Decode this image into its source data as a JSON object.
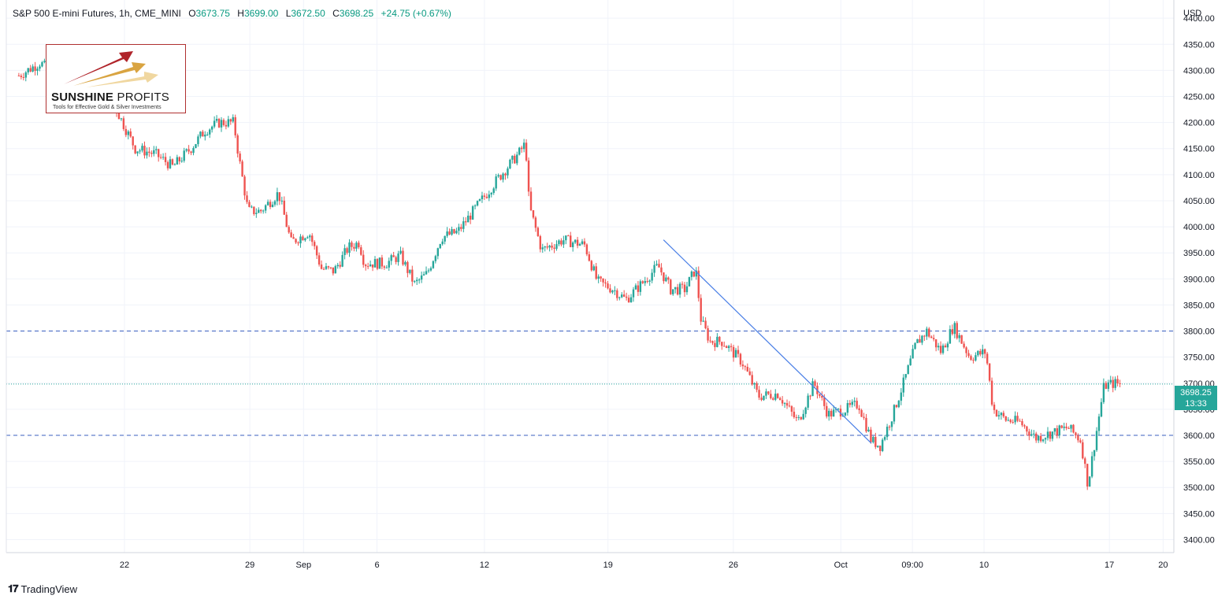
{
  "header": {
    "symbol": "S&P 500 E-mini Futures, 1h, CME_MINI",
    "o_label": "O",
    "o_value": "3673.75",
    "h_label": "H",
    "h_value": "3699.00",
    "l_label": "L",
    "l_value": "3672.50",
    "c_label": "C",
    "c_value": "3698.25",
    "change": "+24.75 (+0.67%)"
  },
  "logo": {
    "name_bold": "SUNSHINE",
    "name_thin": "PROFITS",
    "tagline": "Tools for Effective Gold & Silver Investments"
  },
  "footer": {
    "brand": "TradingView",
    "brand_icon": "tradingview-logo-icon"
  },
  "price_tag": {
    "price": "3698.25",
    "countdown": "13:33",
    "color": "#26a69a"
  },
  "chart_data": {
    "type": "candlestick",
    "currency": "USD",
    "ylim": [
      3375,
      4435
    ],
    "y_ticks": [
      3400,
      3450,
      3500,
      3550,
      3600,
      3650,
      3700,
      3750,
      3800,
      3850,
      3900,
      3950,
      4000,
      4050,
      4100,
      4150,
      4200,
      4250,
      4300,
      4350,
      4400
    ],
    "y_tick_labels": [
      "3400.00",
      "3450.00",
      "3500.00",
      "3550.00",
      "3600.00",
      "3650.00",
      "3700.00",
      "3750.00",
      "3800.00",
      "3850.00",
      "3900.00",
      "3950.00",
      "4000.00",
      "4050.00",
      "4100.00",
      "4150.00",
      "4200.00",
      "4250.00",
      "4300.00",
      "4350.00",
      "4400.00"
    ],
    "x_ticks": [
      {
        "label": "22",
        "t": 5.9
      },
      {
        "label": "29",
        "t": 12.9
      },
      {
        "label": "Sep",
        "t": 15.9
      },
      {
        "label": "6",
        "t": 20.0
      },
      {
        "label": "12",
        "t": 26.0
      },
      {
        "label": "19",
        "t": 32.9
      },
      {
        "label": "26",
        "t": 39.9
      },
      {
        "label": "Oct",
        "t": 45.9
      },
      {
        "label": "09:00",
        "t": 49.9
      },
      {
        "label": "10",
        "t": 53.9
      },
      {
        "label": "17",
        "t": 60.9
      },
      {
        "label": "20",
        "t": 63.9
      }
    ],
    "path": [
      [
        0,
        4290
      ],
      [
        1.2,
        4315
      ],
      [
        2.3,
        4280
      ],
      [
        3.5,
        4270
      ],
      [
        4.4,
        4258
      ],
      [
        5.3,
        4235
      ],
      [
        6.5,
        4150
      ],
      [
        7.6,
        4140
      ],
      [
        8.6,
        4115
      ],
      [
        9.6,
        4150
      ],
      [
        10.4,
        4185
      ],
      [
        11.2,
        4200
      ],
      [
        12.0,
        4200
      ],
      [
        12.3,
        4130
      ],
      [
        12.8,
        4030
      ],
      [
        13.5,
        4030
      ],
      [
        14.5,
        4065
      ],
      [
        15.2,
        3970
      ],
      [
        16.2,
        3990
      ],
      [
        16.9,
        3920
      ],
      [
        17.6,
        3915
      ],
      [
        18.4,
        3960
      ],
      [
        19.0,
        3970
      ],
      [
        19.3,
        3930
      ],
      [
        20.5,
        3930
      ],
      [
        21.3,
        3945
      ],
      [
        22.1,
        3890
      ],
      [
        22.8,
        3910
      ],
      [
        23.6,
        3980
      ],
      [
        24.5,
        3990
      ],
      [
        25.6,
        4040
      ],
      [
        26.7,
        4090
      ],
      [
        27.9,
        4140
      ],
      [
        28.3,
        4160
      ],
      [
        28.5,
        4040
      ],
      [
        29.2,
        3955
      ],
      [
        30.4,
        3975
      ],
      [
        31.6,
        3965
      ],
      [
        32.3,
        3895
      ],
      [
        33.2,
        3880
      ],
      [
        33.9,
        3860
      ],
      [
        34.9,
        3895
      ],
      [
        35.7,
        3925
      ],
      [
        36.4,
        3880
      ],
      [
        37.2,
        3880
      ],
      [
        37.8,
        3920
      ],
      [
        38.1,
        3820
      ],
      [
        38.6,
        3780
      ],
      [
        39.3,
        3780
      ],
      [
        40.4,
        3740
      ],
      [
        41.3,
        3675
      ],
      [
        42.4,
        3680
      ],
      [
        43.5,
        3625
      ],
      [
        44.4,
        3700
      ],
      [
        45.2,
        3640
      ],
      [
        46.2,
        3650
      ],
      [
        46.9,
        3660
      ],
      [
        47.6,
        3590
      ],
      [
        48.1,
        3580
      ],
      [
        48.8,
        3640
      ],
      [
        49.5,
        3710
      ],
      [
        50.1,
        3775
      ],
      [
        50.7,
        3800
      ],
      [
        51.5,
        3760
      ],
      [
        52.2,
        3810
      ],
      [
        53.1,
        3750
      ],
      [
        54.0,
        3760
      ],
      [
        54.4,
        3650
      ],
      [
        55.1,
        3630
      ],
      [
        55.9,
        3625
      ],
      [
        56.8,
        3595
      ],
      [
        57.7,
        3605
      ],
      [
        58.6,
        3615
      ],
      [
        59.3,
        3590
      ],
      [
        59.7,
        3505
      ],
      [
        60.1,
        3590
      ],
      [
        60.6,
        3695
      ],
      [
        61.2,
        3700
      ],
      [
        61.5,
        3698
      ]
    ],
    "last_price": 3698.25,
    "horizontal_levels": [
      3800,
      3600
    ],
    "trendline": {
      "start": [
        36.0,
        3975
      ],
      "end": [
        47.6,
        3585
      ]
    },
    "colors": {
      "up": "#26a69a",
      "down": "#ef5350",
      "level": "#3a5fbf",
      "trend": "#4a7fe6",
      "last": "#26a69a",
      "grid": "#f0f3fa"
    }
  }
}
